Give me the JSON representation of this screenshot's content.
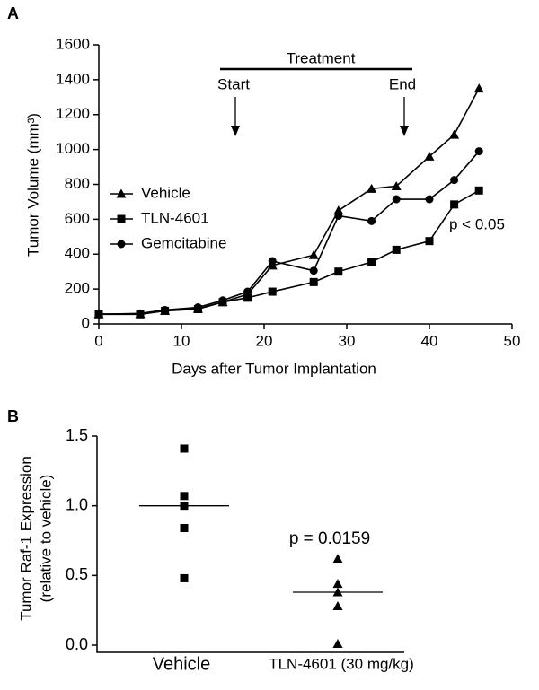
{
  "chart_data": [
    {
      "type": "line",
      "panel": "A",
      "xlabel": "Days after Tumor Implantation",
      "ylabel": "Tumor Volume (mm³)",
      "x": [
        0,
        5,
        8,
        12,
        15,
        18,
        21,
        26,
        29,
        33,
        36,
        40,
        43,
        46
      ],
      "series": [
        {
          "name": "Vehicle",
          "marker": "triangle",
          "color": "#000000",
          "values": [
            57,
            57,
            75,
            87,
            125,
            170,
            335,
            395,
            650,
            775,
            790,
            960,
            1085,
            1350
          ]
        },
        {
          "name": "TLN-4601",
          "marker": "square",
          "color": "#000000",
          "values": [
            55,
            55,
            75,
            85,
            125,
            150,
            185,
            240,
            300,
            355,
            425,
            475,
            685,
            765
          ]
        },
        {
          "name": "Gemcitabine",
          "marker": "circle",
          "color": "#000000",
          "values": [
            55,
            60,
            80,
            95,
            135,
            185,
            360,
            305,
            620,
            590,
            715,
            715,
            825,
            990
          ]
        }
      ],
      "xlim": [
        0,
        50
      ],
      "xticks": [
        0,
        10,
        20,
        30,
        40,
        50
      ],
      "ylim": [
        0,
        1600
      ],
      "yticks": [
        0,
        200,
        400,
        600,
        800,
        1000,
        1200,
        1400,
        1600
      ],
      "annotations": {
        "treatment": "Treatment",
        "start": "Start",
        "end": "End",
        "p": "p < 0.05"
      }
    },
    {
      "type": "dot",
      "panel": "B",
      "ylabel": [
        "Tumor Raf-1 Expression",
        "(relative to vehicle)"
      ],
      "categories": [
        "Vehicle",
        "TLN-4601 (30 mg/kg)"
      ],
      "markers": [
        "square",
        "triangle"
      ],
      "values": [
        [
          1.41,
          1.07,
          1.0,
          0.84,
          0.48
        ],
        [
          0.62,
          0.44,
          0.38,
          0.28,
          0.01
        ]
      ],
      "medians": [
        1.0,
        0.38
      ],
      "ylim": [
        0,
        1.5
      ],
      "yticks": [
        {
          "value": 0,
          "label": "0.0"
        },
        {
          "value": 0.5,
          "label": "0.5"
        },
        {
          "value": 1,
          "label": "1.0"
        },
        {
          "value": 1.5,
          "label": "1.5"
        }
      ],
      "annotations": {
        "p": "p = 0.0159"
      }
    }
  ]
}
